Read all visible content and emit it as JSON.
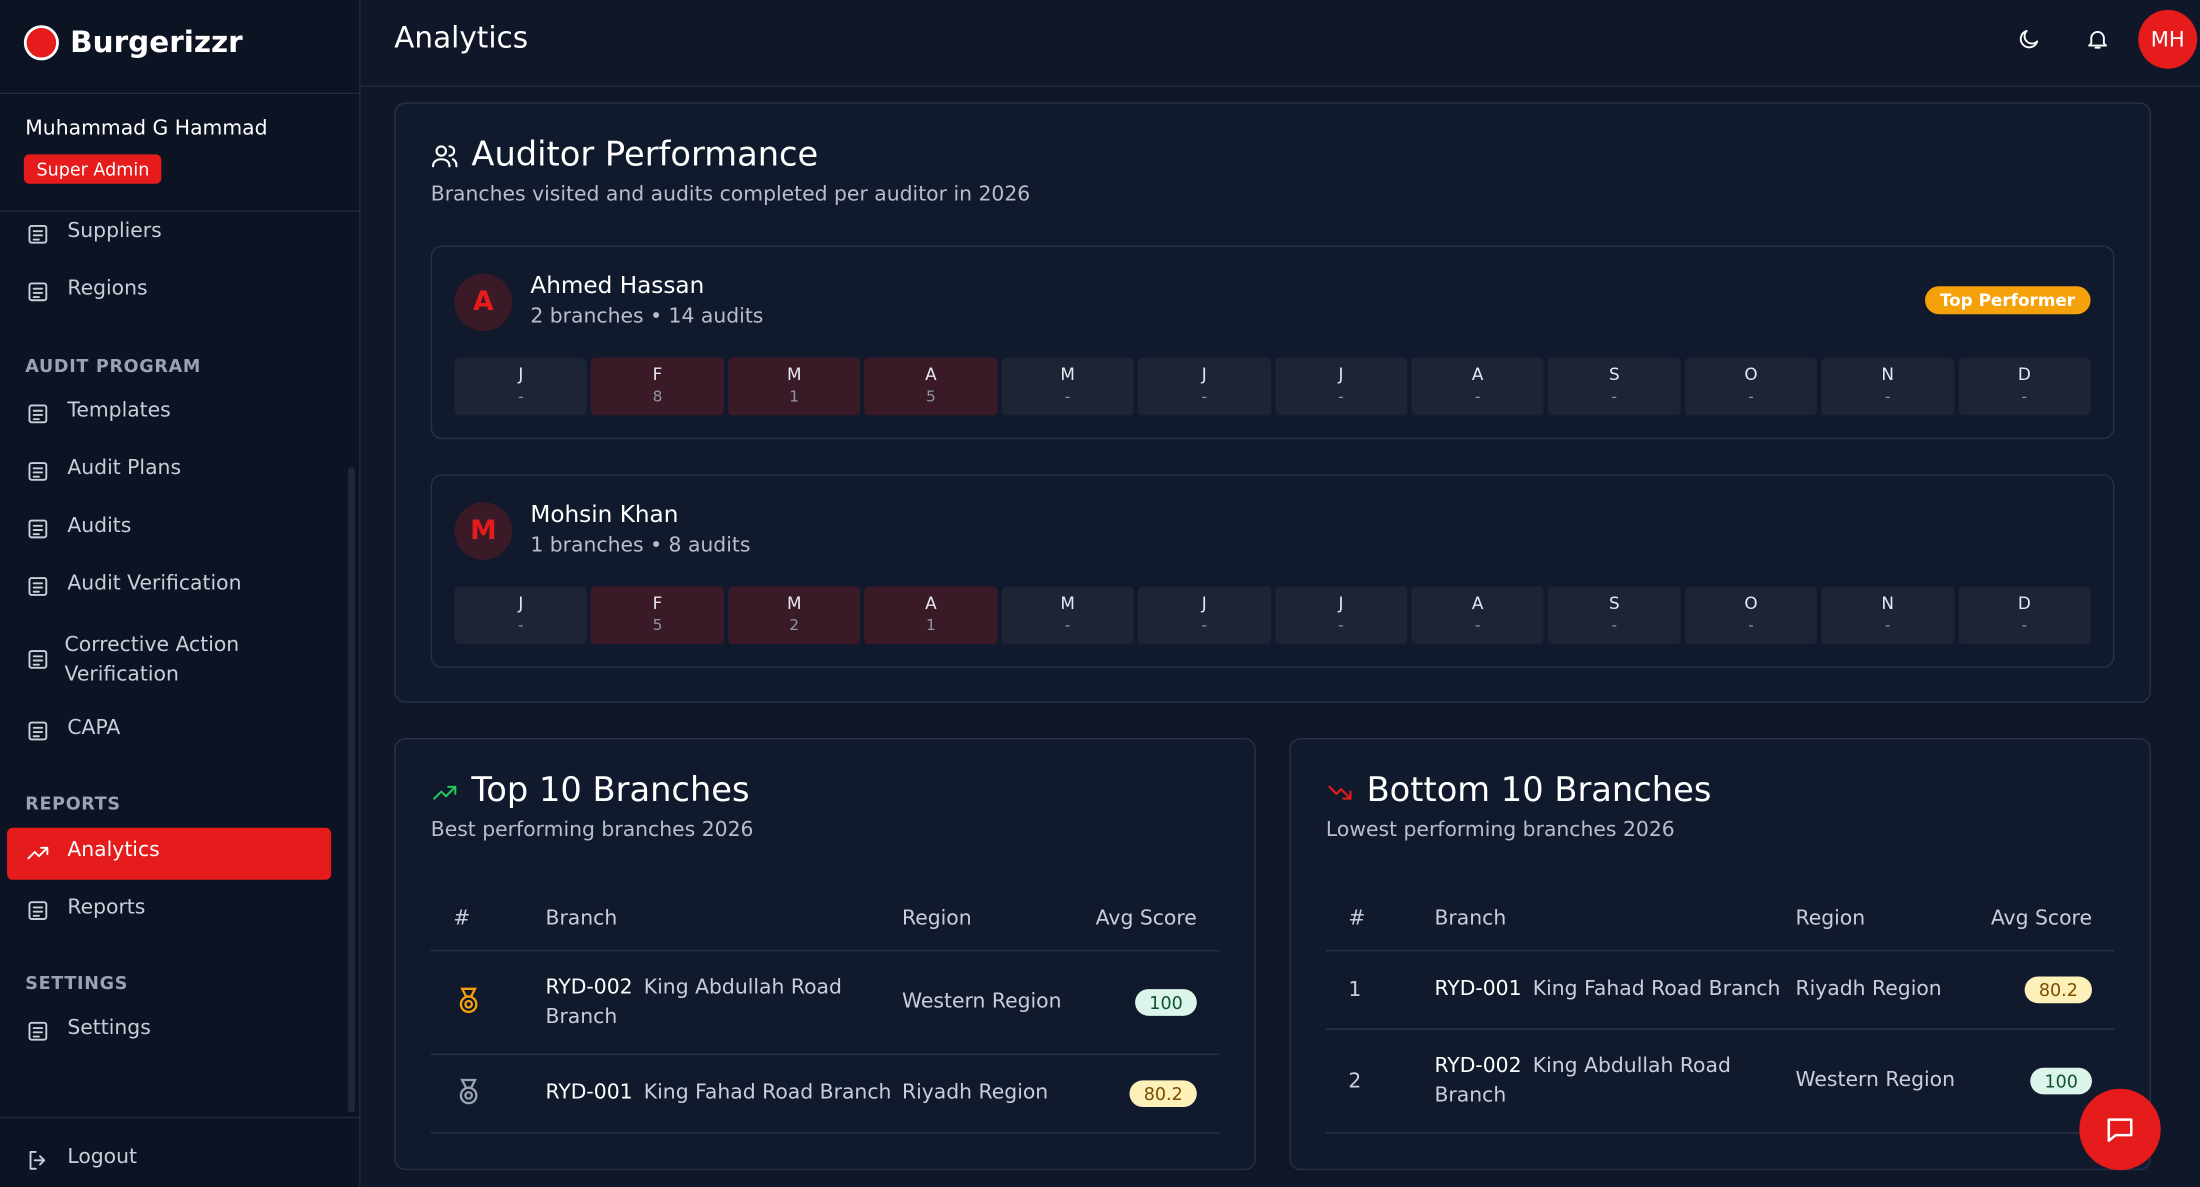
{
  "sidebar": {
    "brand": "Burgerizzr",
    "user_name": "Muhammad G Hammad",
    "role": "Super Admin",
    "top_items": [
      "Suppliers",
      "Regions"
    ],
    "sections": [
      {
        "title": "AUDIT PROGRAM",
        "items": [
          "Templates",
          "Audit Plans",
          "Audits",
          "Audit Verification",
          "Corrective Action Verification",
          "CAPA"
        ]
      },
      {
        "title": "REPORTS",
        "items": [
          "Analytics",
          "Reports"
        ]
      },
      {
        "title": "SETTINGS",
        "items": [
          "Settings"
        ]
      }
    ],
    "logout": "Logout"
  },
  "header": {
    "title": "Analytics",
    "avatar": "MH"
  },
  "auditor_performance": {
    "title": "Auditor Performance",
    "subtitle": "Branches visited and audits completed per auditor in 2026",
    "badge": "Top Performer",
    "months": [
      "J",
      "F",
      "M",
      "A",
      "M",
      "J",
      "J",
      "A",
      "S",
      "O",
      "N",
      "D"
    ],
    "auditors": [
      {
        "initial": "A",
        "name": "Ahmed Hassan",
        "summary": "2 branches • 14 audits",
        "monthly": [
          "-",
          8,
          1,
          5,
          "-",
          "-",
          "-",
          "-",
          "-",
          "-",
          "-",
          "-"
        ]
      },
      {
        "initial": "M",
        "name": "Mohsin Khan",
        "summary": "1 branches • 8 audits",
        "monthly": [
          "-",
          5,
          2,
          1,
          "-",
          "-",
          "-",
          "-",
          "-",
          "-",
          "-",
          "-"
        ]
      }
    ]
  },
  "top_branches": {
    "title": "Top 10 Branches",
    "subtitle": "Best performing branches 2026",
    "columns": [
      "#",
      "Branch",
      "Region",
      "Avg Score"
    ],
    "rows": [
      {
        "code": "RYD-002",
        "name": "King Abdullah Road Branch",
        "region": "Western Region",
        "score": 100
      },
      {
        "code": "RYD-001",
        "name": "King Fahad Road Branch",
        "region": "Riyadh Region",
        "score": 80.2
      }
    ]
  },
  "bottom_branches": {
    "title": "Bottom 10 Branches",
    "subtitle": "Lowest performing branches 2026",
    "columns": [
      "#",
      "Branch",
      "Region",
      "Avg Score"
    ],
    "rows": [
      {
        "rank": 1,
        "code": "RYD-001",
        "name": "King Fahad Road Branch",
        "region": "Riyadh Region",
        "score": 80.2
      },
      {
        "rank": 2,
        "code": "RYD-002",
        "name": "King Abdullah Road Branch",
        "region": "Western Region",
        "score": 100
      }
    ]
  }
}
